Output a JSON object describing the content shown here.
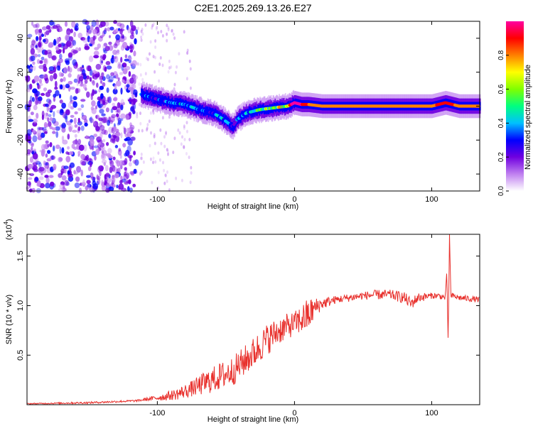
{
  "title": "C2E1.2025.269.13.26.E27",
  "chart_data": [
    {
      "type": "heatmap",
      "name": "spectrogram",
      "xlabel": "Height of straight line (km)",
      "ylabel": "Frequency (Hz)",
      "xlim": [
        -195,
        135
      ],
      "ylim": [
        -50,
        50
      ],
      "xticks": [
        -100,
        0,
        100
      ],
      "xtick_labels": [
        "-100",
        "0",
        "100"
      ],
      "yticks": [
        -40,
        -20,
        0,
        20,
        40
      ],
      "ytick_labels": [
        "-40",
        "-20",
        "0",
        "20",
        "40"
      ],
      "colorbar": {
        "label": "Normalized spectral amplitude",
        "range": [
          0,
          1
        ],
        "ticks": [
          0.0,
          0.2,
          0.4,
          0.6,
          0.8
        ],
        "tick_labels": [
          "0.0",
          "0.2",
          "0.4",
          "0.6",
          "0.8"
        ],
        "colors": [
          "#ffffff",
          "#c080f0",
          "#7000e0",
          "#0000ff",
          "#00c0ff",
          "#00ff80",
          "#80ff00",
          "#ffff00",
          "#ff8000",
          "#ff0000",
          "#ff00a0"
        ]
      },
      "noise_region_x": [
        -195,
        -115
      ],
      "ridge": {
        "x": [
          -112,
          -100,
          -90,
          -80,
          -70,
          -60,
          -55,
          -50,
          -45,
          -42,
          -35,
          -25,
          -15,
          -5,
          0,
          5,
          10,
          20,
          40,
          60,
          80,
          100,
          110,
          120,
          135
        ],
        "freq": [
          7,
          4,
          2,
          1,
          -2,
          -4,
          -6,
          -9,
          -12,
          -8,
          -4,
          -2,
          -1,
          0,
          2,
          1,
          1,
          0,
          0,
          0,
          0,
          0,
          2,
          0,
          0
        ],
        "amplitude": [
          0.4,
          0.3,
          0.35,
          0.4,
          0.35,
          0.3,
          0.4,
          0.35,
          0.3,
          0.3,
          0.4,
          0.5,
          0.55,
          0.7,
          1.0,
          0.95,
          0.85,
          0.8,
          0.8,
          0.8,
          0.8,
          0.8,
          0.95,
          0.8,
          0.8
        ]
      }
    },
    {
      "type": "line",
      "name": "snr",
      "xlabel": "Height of straight line (km)",
      "ylabel": "SNR (10 * v/v)",
      "y_multiplier_label": "(x10",
      "y_multiplier_exp": "4",
      "y_multiplier_close": ")",
      "xlim": [
        -195,
        135
      ],
      "ylim": [
        0,
        1.72
      ],
      "xticks": [
        -100,
        0,
        100
      ],
      "xtick_labels": [
        "-100",
        "0",
        "100"
      ],
      "yticks": [
        0.5,
        1.0,
        1.5
      ],
      "ytick_labels": [
        "0.5",
        "1.0",
        "1.5"
      ],
      "line_color": "#e8302c",
      "series": [
        {
          "name": "SNR",
          "x": [
            -195,
            -150,
            -115,
            -105,
            -95,
            -85,
            -75,
            -65,
            -55,
            -45,
            -40,
            -30,
            -20,
            -10,
            0,
            10,
            15,
            20,
            30,
            40,
            50,
            60,
            70,
            80,
            85,
            90,
            100,
            105,
            110,
            111,
            112,
            113,
            114,
            115,
            120,
            135
          ],
          "y": [
            0.01,
            0.02,
            0.04,
            0.06,
            0.08,
            0.11,
            0.16,
            0.22,
            0.28,
            0.34,
            0.4,
            0.52,
            0.66,
            0.76,
            0.82,
            0.9,
            0.98,
            1.02,
            1.06,
            1.08,
            1.1,
            1.11,
            1.11,
            1.08,
            1.02,
            1.08,
            1.1,
            1.1,
            1.08,
            1.35,
            0.64,
            1.72,
            1.08,
            1.1,
            1.08,
            1.06
          ],
          "jitter": [
            0.005,
            0.01,
            0.01,
            0.02,
            0.04,
            0.06,
            0.08,
            0.12,
            0.14,
            0.15,
            0.15,
            0.16,
            0.16,
            0.14,
            0.12,
            0.18,
            0.1,
            0.06,
            0.04,
            0.04,
            0.04,
            0.05,
            0.05,
            0.06,
            0.06,
            0.05,
            0.03,
            0.03,
            0.03,
            0.0,
            0.0,
            0.0,
            0.03,
            0.03,
            0.03,
            0.03
          ]
        }
      ]
    }
  ]
}
